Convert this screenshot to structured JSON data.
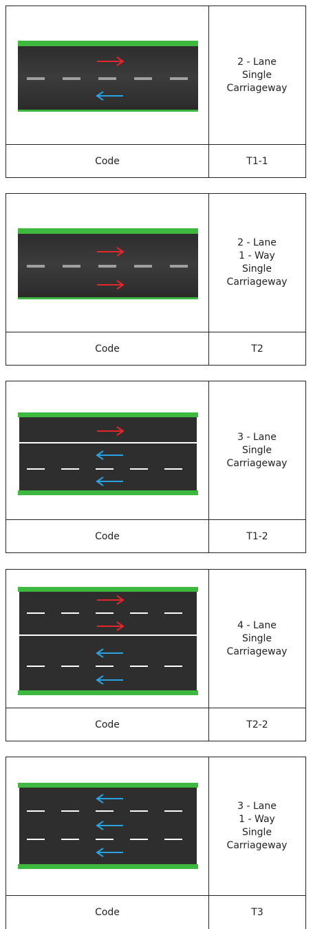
{
  "cards": [
    {
      "description": [
        "2 - Lane",
        "Single",
        "Carriageway"
      ],
      "code_label": "Code",
      "code": "T1-1"
    },
    {
      "description": [
        "2 - Lane",
        "1 - Way",
        "Single",
        "Carriageway"
      ],
      "code_label": "Code",
      "code": "T2"
    },
    {
      "description": [
        "3 - Lane",
        "Single",
        "Carriageway"
      ],
      "code_label": "Code",
      "code": "T1-2"
    },
    {
      "description": [
        "4 - Lane",
        "Single",
        "Carriageway"
      ],
      "code_label": "Code",
      "code": "T2-2"
    },
    {
      "description": [
        "3 - Lane",
        "1 - Way",
        "Single",
        "Carriageway"
      ],
      "code_label": "Code",
      "code": "T3"
    }
  ]
}
